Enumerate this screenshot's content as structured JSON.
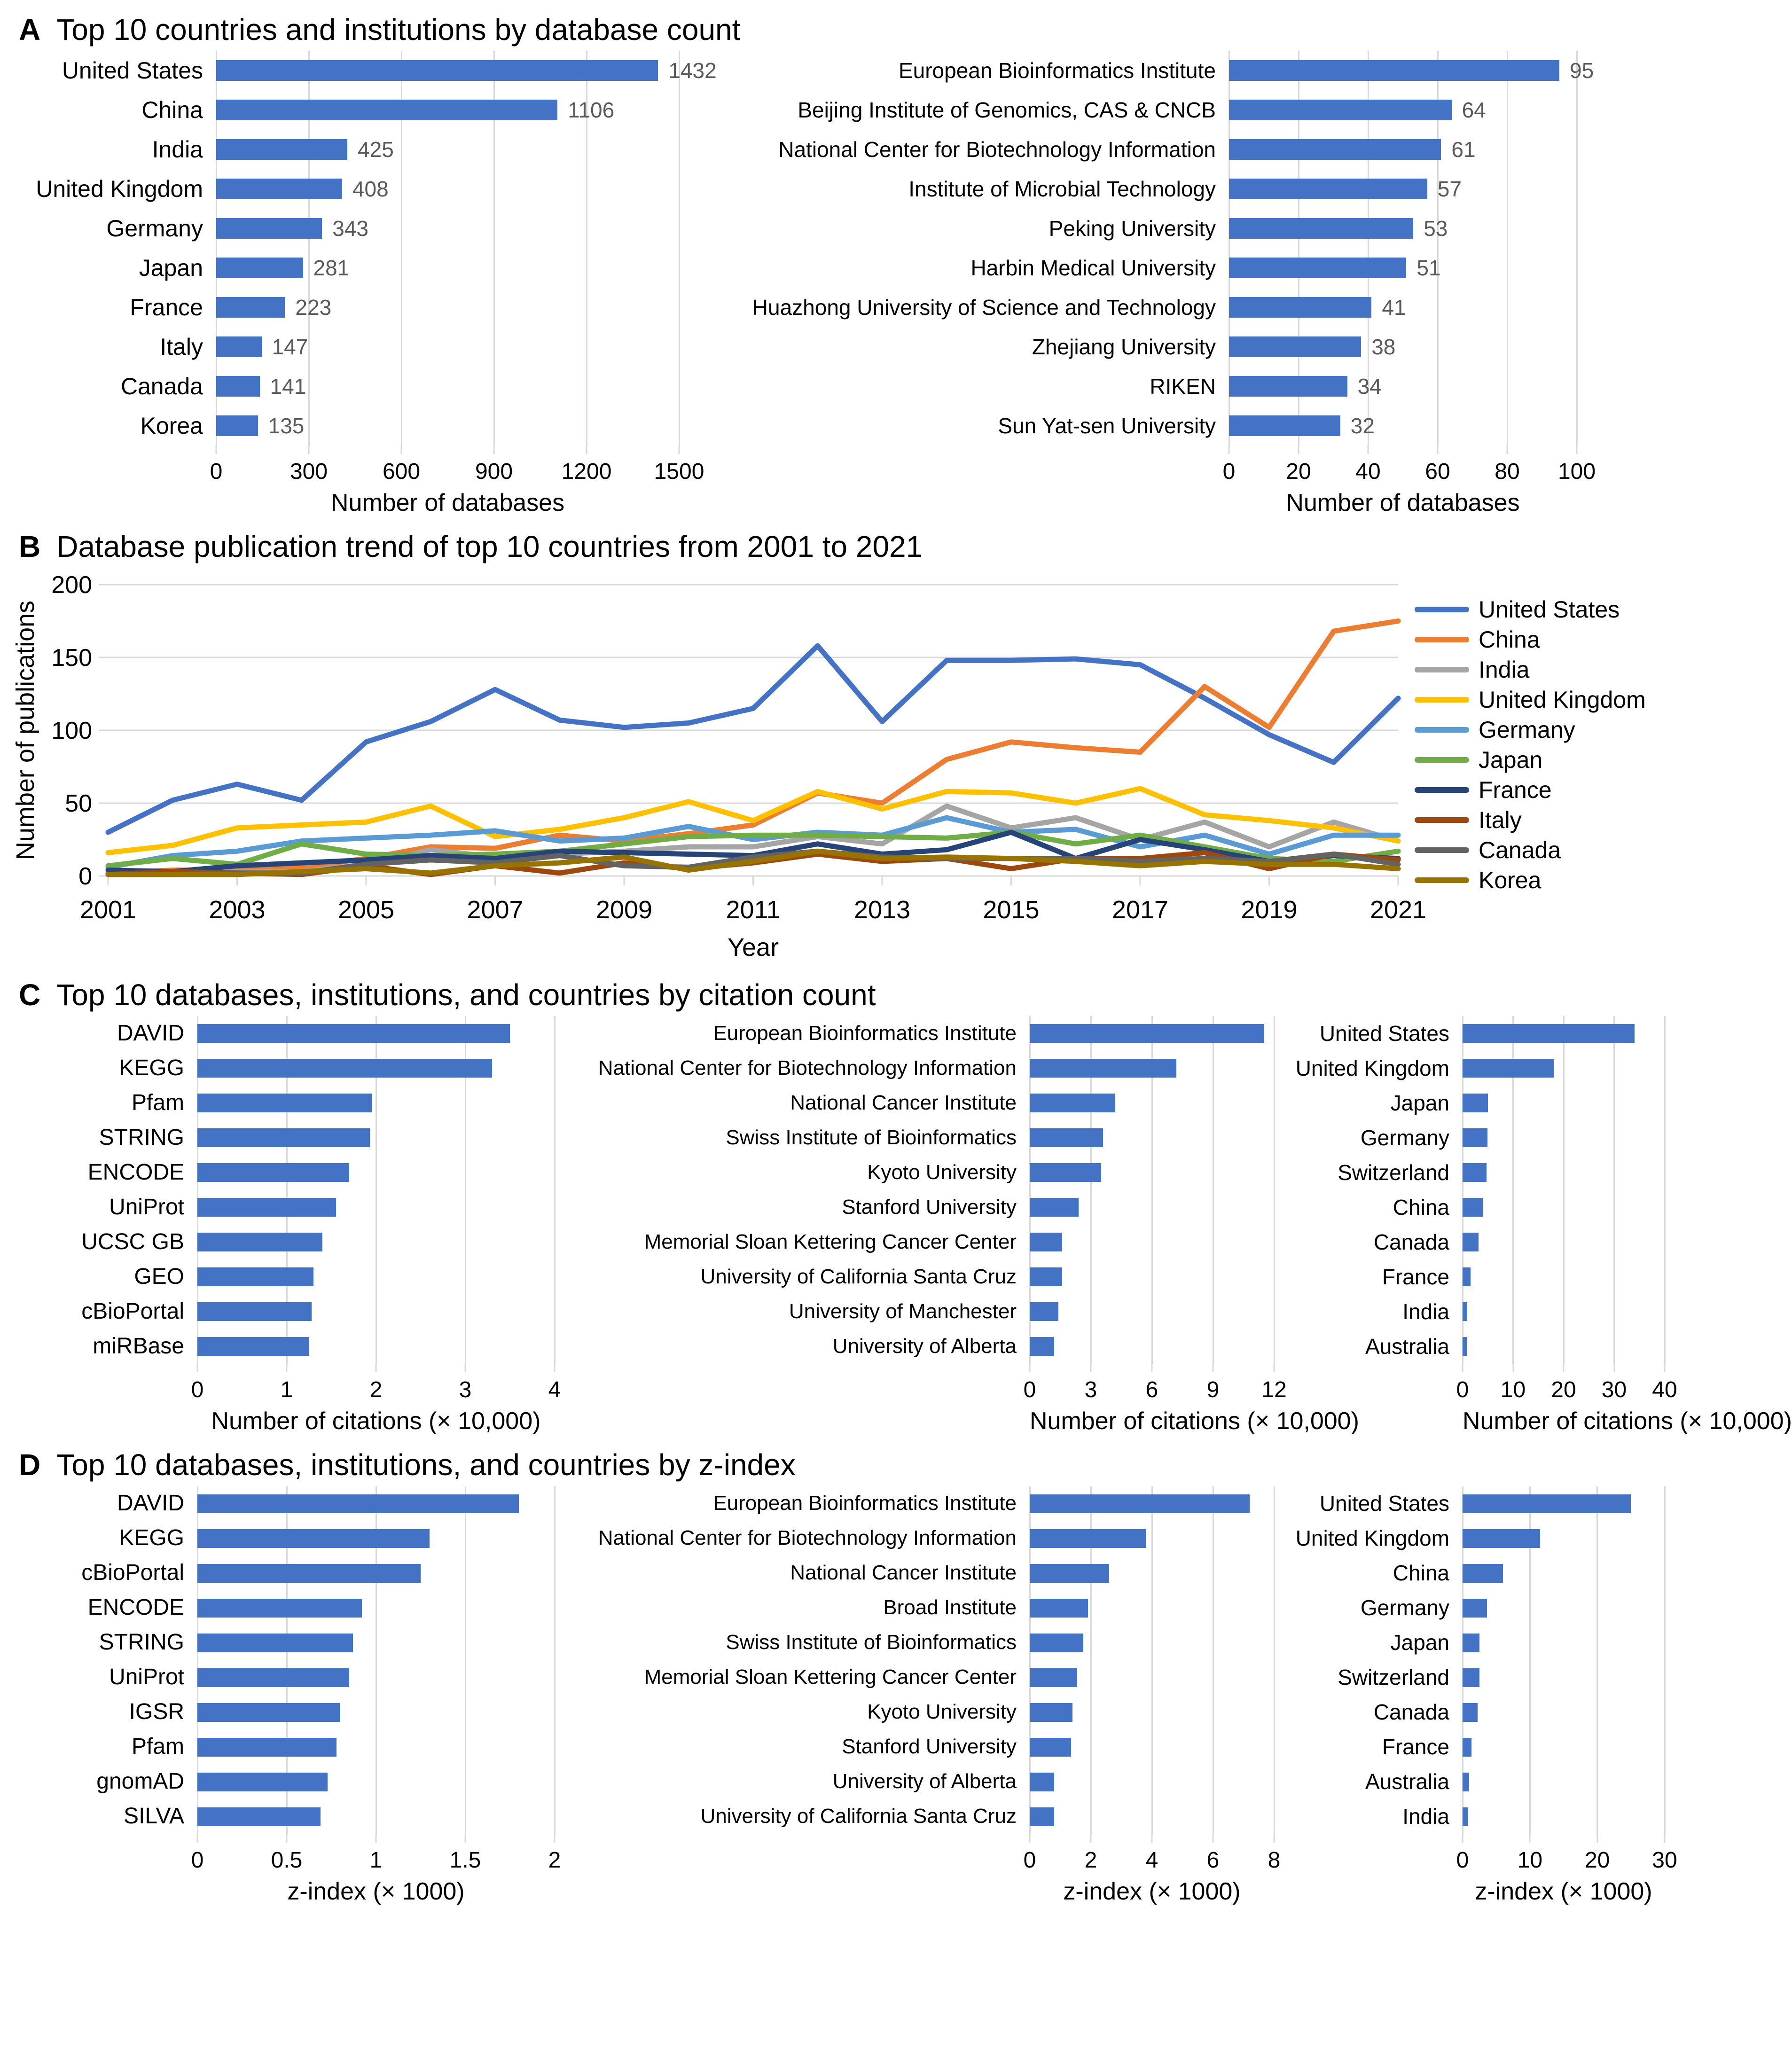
{
  "panels": {
    "a": {
      "letter": "A",
      "title": "Top 10 countries and institutions by database count"
    },
    "b": {
      "letter": "B",
      "title": "Database publication trend of top 10 countries from 2001 to 2021"
    },
    "c": {
      "letter": "C",
      "title": "Top 10 databases, institutions, and countries by citation count"
    },
    "d": {
      "letter": "D",
      "title": "Top 10 databases, institutions, and countries by z-index"
    }
  },
  "colors": {
    "bar": "#4472C4",
    "grid": "#D9D9D9",
    "value_label": "#595959",
    "text": "#000000"
  },
  "chart_data": [
    {
      "id": "a_countries",
      "type": "bar",
      "orientation": "horizontal",
      "categories": [
        "United States",
        "China",
        "India",
        "United Kingdom",
        "Germany",
        "Japan",
        "France",
        "Italy",
        "Canada",
        "Korea"
      ],
      "values": [
        1432,
        1106,
        425,
        408,
        343,
        281,
        223,
        147,
        141,
        135
      ],
      "value_labels": [
        "1432",
        "1106",
        "425",
        "408",
        "343",
        "281",
        "223",
        "147",
        "141",
        "135"
      ],
      "xlim": [
        0,
        1500
      ],
      "xticks": [
        0,
        300,
        600,
        900,
        1200,
        1500
      ],
      "xlabel": "Number of databases",
      "grid": true
    },
    {
      "id": "a_institutions",
      "type": "bar",
      "orientation": "horizontal",
      "categories": [
        "European Bioinformatics Institute",
        "Beijing Institute of Genomics, CAS & CNCB",
        "National Center for Biotechnology Information",
        "Institute of Microbial Technology",
        "Peking University",
        "Harbin Medical University",
        "Huazhong University of Science and Technology",
        "Zhejiang University",
        "RIKEN",
        "Sun Yat-sen University"
      ],
      "values": [
        95,
        64,
        61,
        57,
        53,
        51,
        41,
        38,
        34,
        32
      ],
      "value_labels": [
        "95",
        "64",
        "61",
        "57",
        "53",
        "51",
        "41",
        "38",
        "34",
        "32"
      ],
      "xlim": [
        0,
        100
      ],
      "xticks": [
        0,
        20,
        40,
        60,
        80,
        100
      ],
      "xlabel": "Number of databases",
      "grid": true
    },
    {
      "id": "b_trend",
      "type": "line",
      "x": [
        2001,
        2002,
        2003,
        2004,
        2005,
        2006,
        2007,
        2008,
        2009,
        2010,
        2011,
        2012,
        2013,
        2014,
        2015,
        2016,
        2017,
        2018,
        2019,
        2020,
        2021
      ],
      "xtick_values": [
        2001,
        2003,
        2005,
        2007,
        2009,
        2011,
        2013,
        2015,
        2017,
        2019,
        2021
      ],
      "ylim": [
        0,
        200
      ],
      "yticks": [
        0,
        50,
        100,
        150,
        200
      ],
      "ylabel": "Number of publications",
      "xlabel": "Year",
      "legend_position": "right",
      "grid": "horizontal",
      "series": [
        {
          "name": "United States",
          "color": "#4472C4",
          "values": [
            30,
            52,
            63,
            52,
            92,
            106,
            128,
            107,
            102,
            105,
            115,
            158,
            106,
            148,
            148,
            149,
            145,
            122,
            97,
            78,
            122
          ]
        },
        {
          "name": "China",
          "color": "#ED7D31",
          "values": [
            2,
            4,
            4,
            6,
            12,
            20,
            19,
            28,
            24,
            29,
            35,
            57,
            50,
            80,
            92,
            88,
            85,
            130,
            102,
            168,
            175
          ]
        },
        {
          "name": "India",
          "color": "#A5A5A5",
          "values": [
            1,
            1,
            3,
            3,
            8,
            18,
            13,
            15,
            17,
            20,
            20,
            27,
            22,
            48,
            33,
            40,
            25,
            37,
            20,
            37,
            24
          ]
        },
        {
          "name": "United Kingdom",
          "color": "#FFC000",
          "values": [
            16,
            21,
            33,
            35,
            37,
            48,
            27,
            32,
            40,
            51,
            38,
            58,
            46,
            58,
            57,
            50,
            60,
            42,
            38,
            33,
            24
          ]
        },
        {
          "name": "Germany",
          "color": "#5B9BD5",
          "values": [
            6,
            14,
            17,
            24,
            26,
            28,
            31,
            24,
            26,
            34,
            25,
            30,
            28,
            40,
            30,
            32,
            20,
            28,
            15,
            28,
            28
          ]
        },
        {
          "name": "Japan",
          "color": "#70AD47",
          "values": [
            7,
            12,
            8,
            22,
            15,
            14,
            15,
            17,
            22,
            27,
            28,
            28,
            27,
            26,
            30,
            22,
            28,
            20,
            12,
            10,
            17
          ]
        },
        {
          "name": "France",
          "color": "#264478",
          "values": [
            4,
            3,
            7,
            9,
            11,
            14,
            12,
            17,
            16,
            15,
            14,
            22,
            15,
            18,
            30,
            12,
            25,
            18,
            10,
            14,
            12
          ]
        },
        {
          "name": "Italy",
          "color": "#9E480E",
          "values": [
            1,
            3,
            2,
            1,
            7,
            1,
            7,
            2,
            9,
            5,
            9,
            15,
            10,
            12,
            5,
            12,
            12,
            16,
            5,
            15,
            11
          ]
        },
        {
          "name": "Canada",
          "color": "#636363",
          "values": [
            1,
            1,
            2,
            2,
            8,
            11,
            9,
            14,
            7,
            6,
            13,
            17,
            13,
            12,
            12,
            12,
            10,
            12,
            10,
            15,
            8
          ]
        },
        {
          "name": "Korea",
          "color": "#997300",
          "values": [
            1,
            1,
            1,
            3,
            5,
            2,
            7,
            9,
            13,
            4,
            10,
            17,
            12,
            13,
            12,
            10,
            7,
            10,
            8,
            8,
            5
          ]
        }
      ]
    },
    {
      "id": "c_databases",
      "type": "bar",
      "orientation": "horizontal",
      "categories": [
        "DAVID",
        "KEGG",
        "Pfam",
        "STRING",
        "ENCODE",
        "UniProt",
        "UCSC GB",
        "GEO",
        "cBioPortal",
        "miRBase"
      ],
      "values": [
        3.5,
        3.3,
        1.95,
        1.93,
        1.7,
        1.55,
        1.4,
        1.3,
        1.28,
        1.25
      ],
      "xlim": [
        0,
        4
      ],
      "xticks": [
        0,
        1,
        2,
        3,
        4
      ],
      "xlabel": "Number of citations (× 10,000)",
      "grid": true
    },
    {
      "id": "c_institutions",
      "type": "bar",
      "orientation": "horizontal",
      "categories": [
        "European Bioinformatics Institute",
        "National Center for Biotechnology Information",
        "National Cancer Institute",
        "Swiss Institute of Bioinformatics",
        "Kyoto University",
        "Stanford University",
        "Memorial Sloan Kettering Cancer Center",
        "University of California Santa Cruz",
        "University of Manchester",
        "University of Alberta"
      ],
      "values": [
        11.5,
        7.2,
        4.2,
        3.6,
        3.5,
        2.4,
        1.6,
        1.6,
        1.4,
        1.2
      ],
      "xlim": [
        0,
        12
      ],
      "xticks": [
        0,
        3,
        6,
        9,
        12
      ],
      "xlabel": "Number of citations (× 10,000)",
      "grid": true
    },
    {
      "id": "c_countries",
      "type": "bar",
      "orientation": "horizontal",
      "categories": [
        "United States",
        "United Kingdom",
        "Japan",
        "Germany",
        "Switzerland",
        "China",
        "Canada",
        "France",
        "India",
        "Australia"
      ],
      "values": [
        34,
        18,
        5,
        4.9,
        4.7,
        4,
        3.2,
        1.6,
        0.9,
        0.8
      ],
      "xlim": [
        0,
        40
      ],
      "xticks": [
        0,
        10,
        20,
        30,
        40
      ],
      "xlabel": "Number of citations (× 10,000)",
      "grid": true
    },
    {
      "id": "d_databases",
      "type": "bar",
      "orientation": "horizontal",
      "categories": [
        "DAVID",
        "KEGG",
        "cBioPortal",
        "ENCODE",
        "STRING",
        "UniProt",
        "IGSR",
        "Pfam",
        "gnomAD",
        "SILVA"
      ],
      "values": [
        1.8,
        1.3,
        1.25,
        0.92,
        0.87,
        0.85,
        0.8,
        0.78,
        0.73,
        0.69
      ],
      "xlim": [
        0,
        2
      ],
      "xticks": [
        0,
        0.5,
        1,
        1.5,
        2
      ],
      "xlabel": "z-index (× 1000)",
      "grid": true
    },
    {
      "id": "d_institutions",
      "type": "bar",
      "orientation": "horizontal",
      "categories": [
        "European Bioinformatics Institute",
        "National Center for Biotechnology Information",
        "National Cancer Institute",
        "Broad Institute",
        "Swiss Institute of Bioinformatics",
        "Memorial Sloan Kettering Cancer Center",
        "Kyoto University",
        "Stanford University",
        "University of Alberta",
        "University of California Santa Cruz"
      ],
      "values": [
        7.2,
        3.8,
        2.6,
        1.9,
        1.75,
        1.55,
        1.4,
        1.35,
        0.8,
        0.8
      ],
      "xlim": [
        0,
        8
      ],
      "xticks": [
        0,
        2,
        4,
        6,
        8
      ],
      "xlabel": "z-index (× 1000)",
      "grid": true
    },
    {
      "id": "d_countries",
      "type": "bar",
      "orientation": "horizontal",
      "categories": [
        "United States",
        "United Kingdom",
        "China",
        "Germany",
        "Japan",
        "Switzerland",
        "Canada",
        "France",
        "Australia",
        "India"
      ],
      "values": [
        25,
        11.5,
        6,
        3.6,
        2.5,
        2.5,
        2.2,
        1.3,
        1.0,
        0.8
      ],
      "xlim": [
        0,
        30
      ],
      "xticks": [
        0,
        10,
        20,
        30
      ],
      "xlabel": "z-index (× 1000)",
      "grid": true
    }
  ]
}
